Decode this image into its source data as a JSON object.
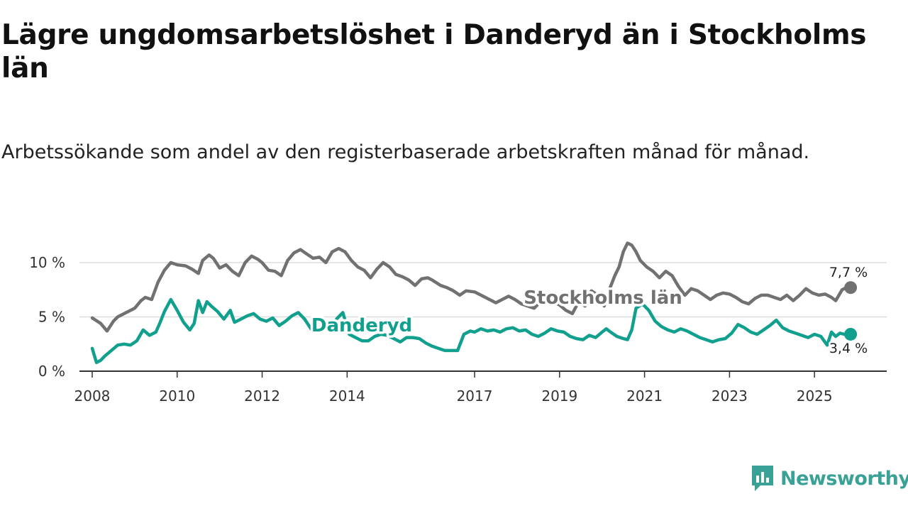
{
  "chart_data": {
    "type": "line",
    "title": "Lägre ungdomsarbetslöshet i Danderyd än i Stockholms län",
    "subtitle": "Arbetssökande som andel av den registerbaserade arbetskraften månad för månad.",
    "xlabel": "",
    "ylabel": "",
    "ylim": [
      0,
      12
    ],
    "yticks": [
      {
        "value": 0,
        "label": "0 %"
      },
      {
        "value": 5,
        "label": "5 %"
      },
      {
        "value": 10,
        "label": "10 %"
      }
    ],
    "xticks": [
      {
        "value": 2008,
        "label": "2008"
      },
      {
        "value": 2010,
        "label": "2010"
      },
      {
        "value": 2012,
        "label": "2012"
      },
      {
        "value": 2014,
        "label": "2014"
      },
      {
        "value": 2017,
        "label": "2017"
      },
      {
        "value": 2019,
        "label": "2019"
      },
      {
        "value": 2021,
        "label": "2021"
      },
      {
        "value": 2023,
        "label": "2023"
      },
      {
        "value": 2025,
        "label": "2025"
      }
    ],
    "xlim": [
      2007.7,
      2026.7
    ],
    "series": [
      {
        "name": "Stockholms län",
        "color": "#717171",
        "end_label": "7,7 %",
        "x": [
          2008.0,
          2008.2,
          2008.35,
          2008.5,
          2008.6,
          2008.8,
          2009.0,
          2009.15,
          2009.25,
          2009.4,
          2009.55,
          2009.7,
          2009.85,
          2010.0,
          2010.2,
          2010.35,
          2010.5,
          2010.6,
          2010.75,
          2010.85,
          2011.0,
          2011.15,
          2011.3,
          2011.45,
          2011.6,
          2011.75,
          2011.9,
          2012.0,
          2012.15,
          2012.3,
          2012.45,
          2012.6,
          2012.75,
          2012.9,
          2013.05,
          2013.2,
          2013.35,
          2013.5,
          2013.65,
          2013.8,
          2013.95,
          2014.1,
          2014.25,
          2014.4,
          2014.55,
          2014.7,
          2014.85,
          2015.0,
          2015.15,
          2015.3,
          2015.45,
          2015.6,
          2015.75,
          2015.9,
          2016.0,
          2016.2,
          2016.35,
          2016.5,
          2016.65,
          2016.8,
          2017.0,
          2017.2,
          2017.35,
          2017.5,
          2017.65,
          2017.8,
          2017.95,
          2018.1,
          2018.25,
          2018.4,
          2018.55,
          2018.7,
          2018.85,
          2019.0,
          2019.15,
          2019.3,
          2019.45,
          2019.6,
          2019.75,
          2019.9,
          2020.05,
          2020.2,
          2020.3,
          2020.4,
          2020.5,
          2020.6,
          2020.7,
          2020.8,
          2020.9,
          2021.05,
          2021.2,
          2021.35,
          2021.5,
          2021.65,
          2021.8,
          2021.95,
          2022.1,
          2022.25,
          2022.4,
          2022.55,
          2022.7,
          2022.85,
          2023.0,
          2023.15,
          2023.3,
          2023.45,
          2023.6,
          2023.75,
          2023.9,
          2024.05,
          2024.2,
          2024.35,
          2024.5,
          2024.65,
          2024.8,
          2024.95,
          2025.1,
          2025.25,
          2025.4,
          2025.5,
          2025.65,
          2025.75,
          2025.85
        ],
        "values": [
          4.9,
          4.4,
          3.7,
          4.6,
          5.0,
          5.4,
          5.8,
          6.5,
          6.8,
          6.6,
          8.2,
          9.3,
          10.0,
          9.8,
          9.7,
          9.4,
          9.0,
          10.2,
          10.7,
          10.4,
          9.5,
          9.8,
          9.2,
          8.8,
          10.0,
          10.6,
          10.3,
          10.0,
          9.3,
          9.2,
          8.8,
          10.2,
          10.9,
          11.2,
          10.8,
          10.4,
          10.5,
          10.0,
          11.0,
          11.3,
          11.0,
          10.2,
          9.6,
          9.3,
          8.6,
          9.4,
          10.0,
          9.6,
          8.9,
          8.7,
          8.4,
          7.9,
          8.5,
          8.6,
          8.4,
          7.9,
          7.7,
          7.4,
          7.0,
          7.4,
          7.3,
          6.9,
          6.6,
          6.3,
          6.6,
          6.9,
          6.6,
          6.2,
          6.0,
          5.8,
          6.4,
          6.8,
          6.4,
          6.1,
          5.6,
          5.3,
          6.4,
          6.0,
          7.4,
          7.0,
          6.0,
          7.8,
          8.8,
          9.6,
          11.0,
          11.8,
          11.6,
          11.0,
          10.2,
          9.6,
          9.2,
          8.6,
          9.2,
          8.8,
          7.8,
          7.0,
          7.6,
          7.4,
          7.0,
          6.6,
          7.0,
          7.2,
          7.1,
          6.8,
          6.4,
          6.2,
          6.7,
          7.0,
          7.0,
          6.8,
          6.6,
          7.0,
          6.5,
          7.0,
          7.6,
          7.2,
          7.0,
          7.1,
          6.8,
          6.5,
          7.5,
          7.7,
          7.7
        ]
      },
      {
        "name": "Danderyd",
        "color": "#12a08e",
        "end_label": "3,4 %",
        "x": [
          2008.0,
          2008.1,
          2008.2,
          2008.3,
          2008.45,
          2008.6,
          2008.75,
          2008.9,
          2009.05,
          2009.2,
          2009.35,
          2009.5,
          2009.6,
          2009.7,
          2009.85,
          2010.0,
          2010.15,
          2010.3,
          2010.4,
          2010.5,
          2010.6,
          2010.7,
          2010.8,
          2010.95,
          2011.1,
          2011.25,
          2011.35,
          2011.5,
          2011.65,
          2011.8,
          2011.95,
          2012.1,
          2012.25,
          2012.4,
          2012.55,
          2012.7,
          2012.85,
          2013.0,
          2013.15,
          2013.3,
          2013.45,
          2013.6,
          2013.75,
          2013.9,
          2014.05,
          2014.2,
          2014.35,
          2014.5,
          2014.65,
          2014.8,
          2014.95,
          2015.1,
          2015.25,
          2015.4,
          2015.55,
          2015.7,
          2015.85,
          2016.0,
          2016.15,
          2016.3,
          2016.45,
          2016.6,
          2016.75,
          2016.9,
          2017.0,
          2017.15,
          2017.3,
          2017.45,
          2017.6,
          2017.75,
          2017.9,
          2018.05,
          2018.2,
          2018.35,
          2018.5,
          2018.65,
          2018.8,
          2018.95,
          2019.1,
          2019.25,
          2019.4,
          2019.55,
          2019.7,
          2019.85,
          2020.0,
          2020.1,
          2020.2,
          2020.35,
          2020.5,
          2020.6,
          2020.7,
          2020.8,
          2020.95,
          2021.1,
          2021.25,
          2021.4,
          2021.55,
          2021.7,
          2021.85,
          2022.0,
          2022.15,
          2022.3,
          2022.45,
          2022.6,
          2022.75,
          2022.9,
          2023.05,
          2023.2,
          2023.35,
          2023.5,
          2023.65,
          2023.8,
          2023.95,
          2024.1,
          2024.25,
          2024.4,
          2024.55,
          2024.7,
          2024.85,
          2025.0,
          2025.15,
          2025.3,
          2025.4,
          2025.5,
          2025.6,
          2025.7,
          2025.8,
          2025.85
        ],
        "values": [
          2.1,
          0.8,
          1.0,
          1.4,
          1.9,
          2.4,
          2.5,
          2.4,
          2.8,
          3.8,
          3.3,
          3.6,
          4.5,
          5.5,
          6.6,
          5.6,
          4.5,
          3.8,
          4.4,
          6.5,
          5.4,
          6.4,
          6.0,
          5.5,
          4.8,
          5.6,
          4.5,
          4.8,
          5.1,
          5.3,
          4.8,
          4.6,
          4.9,
          4.2,
          4.6,
          5.1,
          5.4,
          4.8,
          3.9,
          3.6,
          4.2,
          3.9,
          4.8,
          5.4,
          3.4,
          3.1,
          2.8,
          2.8,
          3.2,
          3.4,
          3.3,
          3.0,
          2.7,
          3.1,
          3.1,
          3.0,
          2.6,
          2.3,
          2.1,
          1.9,
          1.9,
          1.9,
          3.4,
          3.7,
          3.6,
          3.9,
          3.7,
          3.8,
          3.6,
          3.9,
          4.0,
          3.7,
          3.8,
          3.4,
          3.2,
          3.5,
          3.9,
          3.7,
          3.6,
          3.2,
          3.0,
          2.9,
          3.3,
          3.1,
          3.6,
          3.9,
          3.6,
          3.2,
          3.0,
          2.9,
          3.8,
          5.8,
          6.2,
          5.6,
          4.6,
          4.1,
          3.8,
          3.6,
          3.9,
          3.7,
          3.4,
          3.1,
          2.9,
          2.7,
          2.9,
          3.0,
          3.5,
          4.3,
          4.0,
          3.6,
          3.4,
          3.8,
          4.2,
          4.7,
          4.0,
          3.7,
          3.5,
          3.3,
          3.1,
          3.4,
          3.2,
          2.4,
          3.6,
          3.2,
          3.5,
          3.4,
          3.4,
          3.4
        ]
      }
    ]
  },
  "brand": {
    "name": "Newsworthy",
    "icon": "newsworthy-logo-icon",
    "color": "#3aa197"
  }
}
